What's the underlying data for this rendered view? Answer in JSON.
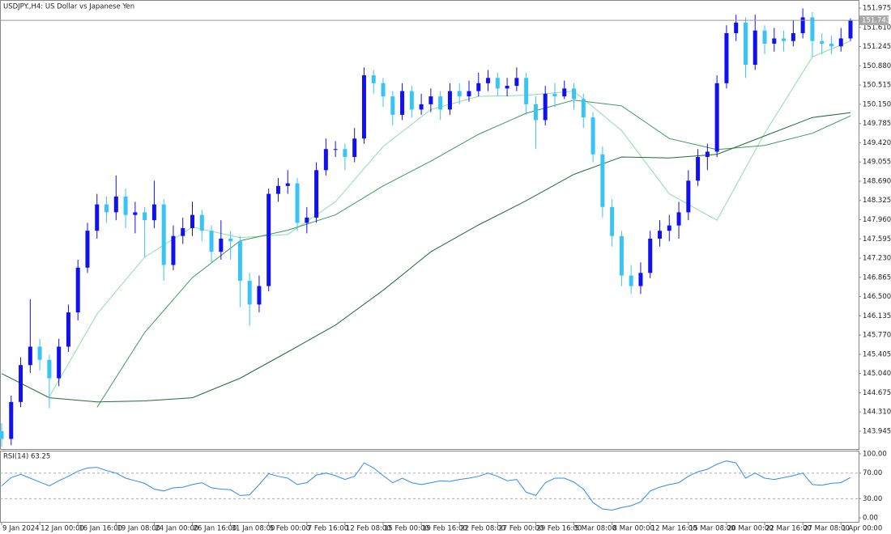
{
  "chart_data": [
    {
      "type": "candlestick",
      "title": "USDJPY.,H4:  US Dollar vs Japanese Yen",
      "categories": [
        "9 Jan 2024",
        null,
        null,
        null,
        "12 Jan 00:00",
        null,
        null,
        null,
        "16 Jan 16:00",
        null,
        null,
        null,
        "19 Jan 08:00",
        null,
        null,
        null,
        "24 Jan 00:00",
        null,
        null,
        null,
        "26 Jan 16:00",
        null,
        null,
        null,
        "31 Jan 08:00",
        null,
        null,
        null,
        "5 Feb 00:00",
        null,
        null,
        null,
        "7 Feb 16:00",
        null,
        null,
        null,
        "12 Feb 08:00",
        null,
        null,
        null,
        "15 Feb 00:00",
        null,
        null,
        null,
        "19 Feb 16:00",
        null,
        null,
        null,
        "22 Feb 08:00",
        null,
        null,
        null,
        "27 Feb 00:00",
        null,
        null,
        null,
        "29 Feb 16:00",
        null,
        null,
        null,
        "5 Mar 08:00",
        null,
        null,
        null,
        "8 Mar 00:00",
        null,
        null,
        null,
        "12 Mar 16:00",
        null,
        null,
        null,
        "15 Mar 08:00",
        null,
        null,
        null,
        "20 Mar 00:00",
        null,
        null,
        null,
        "22 Mar 16:00",
        null,
        null,
        null,
        "27 Mar 08:00",
        null,
        null,
        null,
        "1 Apr 00:00",
        null
      ],
      "open": [
        143.95,
        143.8,
        144.5,
        145.2,
        145.55,
        145.3,
        144.95,
        145.55,
        146.2,
        147.05,
        147.75,
        148.25,
        148.1,
        148.4,
        148.05,
        148.1,
        147.95,
        148.25,
        147.1,
        147.65,
        147.8,
        148.05,
        147.75,
        147.35,
        147.6,
        147.55,
        146.8,
        146.35,
        146.7,
        148.45,
        148.6,
        148.65,
        147.9,
        148,
        148.9,
        149.3,
        149.3,
        149.15,
        149.5,
        150.7,
        150.55,
        150.3,
        149.95,
        150.4,
        150.05,
        150.15,
        150.3,
        150.05,
        150.4,
        150.3,
        150.4,
        150.55,
        150.65,
        150.45,
        150.5,
        150.65,
        150.15,
        149.85,
        150.35,
        150.3,
        150.45,
        150.25,
        149.9,
        149.2,
        148.2,
        147.65,
        146.9,
        146.7,
        146.95,
        147.6,
        147.75,
        147.85,
        148.1,
        148.7,
        149.15,
        149.25,
        150.55,
        151.5,
        151.7,
        150.9,
        151.55,
        151.3,
        151.4,
        151.35,
        151.5,
        151.8,
        151.35,
        151.3,
        151.25,
        151.4
      ],
      "high": [
        144.1,
        144.62,
        145.35,
        146.45,
        145.7,
        145.4,
        145.7,
        146.35,
        147.2,
        147.9,
        148.45,
        148.4,
        148.8,
        148.55,
        148.3,
        148.2,
        148.7,
        148.35,
        147.85,
        148,
        148.3,
        148.15,
        147.85,
        147.95,
        147.75,
        147.65,
        146.95,
        146.9,
        148.55,
        148.75,
        148.9,
        148.75,
        148.2,
        149.05,
        149.5,
        149.45,
        149.4,
        149.7,
        150.85,
        150.8,
        150.65,
        150.4,
        150.55,
        150.5,
        150.35,
        150.45,
        150.4,
        150.55,
        150.55,
        150.6,
        150.75,
        150.8,
        150.75,
        150.65,
        150.85,
        150.75,
        150.3,
        150.5,
        150.55,
        150.6,
        150.55,
        150.35,
        150,
        149.35,
        148.35,
        147.75,
        147.1,
        147.15,
        147.75,
        147.95,
        148.05,
        148.3,
        148.9,
        149.3,
        149.4,
        150.7,
        151.65,
        151.85,
        151.8,
        151.85,
        151.65,
        151.6,
        151.55,
        151.75,
        151.97,
        151.9,
        151.5,
        151.45,
        151.6,
        151.78
      ],
      "low": [
        143.65,
        143.68,
        144.4,
        145.05,
        145.1,
        144.38,
        144.8,
        145.45,
        146.05,
        146.95,
        147.6,
        147.9,
        147.95,
        147.8,
        147.7,
        147.25,
        147.8,
        146.8,
        147,
        147.5,
        147.65,
        147.55,
        147.15,
        147.2,
        147.2,
        146.3,
        145.95,
        146.2,
        146.6,
        148.3,
        148.45,
        147.75,
        147.7,
        147.9,
        148.8,
        149.15,
        148.9,
        149.05,
        149.4,
        150.35,
        150.1,
        149.75,
        149.85,
        149.9,
        149.95,
        150,
        149.85,
        149.95,
        150.15,
        150.2,
        150.3,
        150.4,
        150.3,
        150.3,
        150.4,
        149.95,
        149.3,
        149.75,
        150.1,
        150.25,
        150.05,
        149.7,
        149.05,
        148,
        147.45,
        146.7,
        146.55,
        146.55,
        146.85,
        147.45,
        147.55,
        147.6,
        147.95,
        148.6,
        148.9,
        149.15,
        150.45,
        151.35,
        150.65,
        150.8,
        151.1,
        151.15,
        151.15,
        151.25,
        151.4,
        151.05,
        151.1,
        151.1,
        151.15,
        151.35
      ],
      "close": [
        143.8,
        144.5,
        145.2,
        145.55,
        145.3,
        144.95,
        145.55,
        146.2,
        147.05,
        147.75,
        148.25,
        148.1,
        148.4,
        148.05,
        148.1,
        147.95,
        148.25,
        147.1,
        147.65,
        147.8,
        148.05,
        147.75,
        147.35,
        147.6,
        147.55,
        146.8,
        146.35,
        146.7,
        148.45,
        148.6,
        148.65,
        147.9,
        148,
        148.9,
        149.3,
        149.3,
        149.15,
        149.5,
        150.7,
        150.55,
        150.3,
        149.95,
        150.4,
        150.05,
        150.15,
        150.3,
        150.05,
        150.4,
        150.3,
        150.4,
        150.55,
        150.65,
        150.45,
        150.5,
        150.65,
        150.15,
        149.85,
        150.35,
        150.3,
        150.45,
        150.25,
        149.9,
        149.2,
        148.2,
        147.65,
        146.9,
        146.7,
        146.95,
        147.6,
        147.75,
        147.85,
        148.1,
        148.7,
        149.15,
        149.25,
        150.55,
        151.5,
        151.7,
        150.9,
        151.55,
        151.3,
        151.4,
        151.35,
        151.5,
        151.8,
        151.35,
        151.3,
        151.25,
        151.4,
        151.743
      ],
      "up_color": "#1010f0",
      "down_color": "#38c4f4",
      "current_price": 151.743,
      "moving_averages": [
        {
          "color": "#8fdcaa",
          "x": [
            0,
            5,
            10,
            15,
            20,
            25,
            30,
            35,
            40,
            45,
            50,
            55,
            60,
            65,
            70,
            75,
            80,
            85,
            89
          ],
          "values": [
            null,
            144.6,
            146.17,
            147.25,
            147.82,
            147.62,
            147.68,
            148.3,
            149.35,
            150.05,
            150.3,
            150.32,
            150.4,
            149.65,
            148.45,
            147.95,
            149.6,
            151.05,
            151.35
          ]
        },
        {
          "color": "#3c9a5a",
          "x": [
            0,
            5,
            10,
            15,
            20,
            25,
            30,
            35,
            40,
            45,
            50,
            55,
            60,
            65,
            70,
            75,
            80,
            85,
            89
          ],
          "values": [
            null,
            null,
            144.4,
            145.82,
            146.86,
            147.56,
            147.76,
            148.05,
            148.6,
            149.07,
            149.58,
            149.98,
            150.23,
            150.12,
            149.5,
            149.29,
            149.37,
            149.6,
            149.93
          ]
        },
        {
          "color": "#1f6b3a",
          "x": [
            0,
            5,
            10,
            15,
            20,
            25,
            30,
            35,
            40,
            45,
            50,
            55,
            60,
            65,
            70,
            75,
            80,
            85,
            89
          ],
          "values": [
            145.04,
            144.58,
            144.5,
            144.52,
            144.58,
            144.95,
            145.45,
            145.96,
            146.62,
            147.35,
            147.86,
            148.32,
            148.82,
            149.15,
            149.13,
            149.2,
            149.55,
            149.9,
            149.99
          ]
        }
      ],
      "ylim": [
        143.607,
        152.129
      ],
      "yticks": [
        151.975,
        {
          "value": 151.61,
          "label": "151.610"
        },
        151.245,
        {
          "value": 150.88,
          "label": "150.880"
        },
        150.515,
        {
          "value": 150.15,
          "label": "150.150"
        },
        149.785,
        {
          "value": 149.42,
          "label": "149.420"
        },
        149.055,
        {
          "value": 148.69,
          "label": "148.690"
        },
        148.325,
        {
          "value": 147.96,
          "label": "147.960"
        },
        147.595,
        {
          "value": 147.23,
          "label": "147.230"
        },
        146.865,
        {
          "value": 146.5,
          "label": "146.500"
        },
        146.135,
        {
          "value": 145.77,
          "label": "145.770"
        },
        145.405,
        {
          "value": 145.04,
          "label": "145.040"
        },
        144.675,
        {
          "value": 144.31,
          "label": "144.310"
        },
        143.945
      ]
    },
    {
      "type": "line",
      "title": "RSI(14) 63.25",
      "color": "#2d8cf0",
      "values": [
        50,
        63,
        68,
        62,
        56,
        50,
        58,
        65,
        73,
        78,
        79,
        74,
        70,
        62,
        58,
        54,
        45,
        42,
        47,
        48,
        52,
        55,
        47,
        45,
        44,
        35,
        36,
        52,
        69,
        65,
        62,
        52,
        55,
        67,
        70,
        66,
        60,
        65,
        86,
        78,
        66,
        55,
        62,
        55,
        52,
        55,
        58,
        57,
        60,
        62,
        65,
        70,
        65,
        58,
        60,
        40,
        35,
        55,
        62,
        62,
        56,
        45,
        24,
        14,
        12,
        16,
        19,
        25,
        42,
        48,
        52,
        55,
        65,
        72,
        76,
        84,
        89,
        86,
        62,
        70,
        62,
        60,
        63,
        66,
        70,
        52,
        51,
        54,
        55,
        63.25
      ],
      "ylim": [
        -6.3,
        105.1
      ],
      "yticks": [
        {
          "value": 0,
          "label": "0.00"
        },
        {
          "value": 30,
          "label": "30.00"
        },
        {
          "value": 70,
          "label": "70.00"
        },
        {
          "value": 100,
          "label": "100.00"
        }
      ]
    }
  ]
}
